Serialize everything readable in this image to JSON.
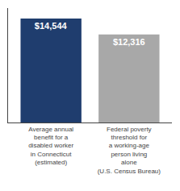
{
  "chart_data": {
    "type": "bar",
    "categories": [
      "Average annual\nbenefit for a\ndisabled worker\nin Connecticut\n(estimated)",
      "Federal poverty\nthreshold for\na working-age\nperson living\nalone\n(U.S. Census Bureau)"
    ],
    "values": [
      14544,
      12316
    ],
    "value_labels": [
      "$14,544",
      "$12,316"
    ],
    "data_labels": true,
    "colors": [
      "#1f3d6e",
      "#a8a8a8"
    ],
    "ylim": [
      0,
      16000
    ],
    "grid": false,
    "tick_labels": "x"
  }
}
